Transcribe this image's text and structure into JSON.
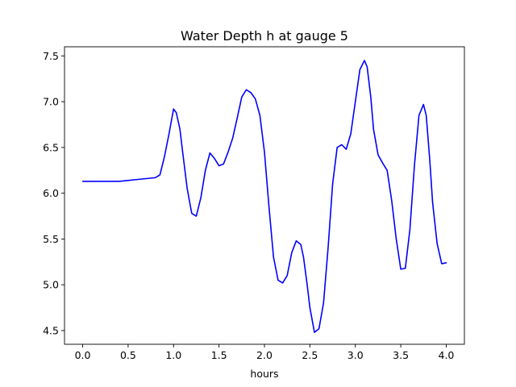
{
  "chart_data": {
    "type": "line",
    "title": "Water Depth h at gauge 5",
    "xlabel": "hours",
    "ylabel": "",
    "xlim": [
      -0.2,
      4.2
    ],
    "ylim": [
      4.35,
      7.6
    ],
    "x_ticks": [
      {
        "value": 0.0,
        "label": "0.0"
      },
      {
        "value": 0.5,
        "label": "0.5"
      },
      {
        "value": 1.0,
        "label": "1.0"
      },
      {
        "value": 1.5,
        "label": "1.5"
      },
      {
        "value": 2.0,
        "label": "2.0"
      },
      {
        "value": 2.5,
        "label": "2.5"
      },
      {
        "value": 3.0,
        "label": "3.0"
      },
      {
        "value": 3.5,
        "label": "3.5"
      },
      {
        "value": 4.0,
        "label": "4.0"
      }
    ],
    "y_ticks": [
      {
        "value": 4.5,
        "label": "4.5"
      },
      {
        "value": 5.0,
        "label": "5.0"
      },
      {
        "value": 5.5,
        "label": "5.5"
      },
      {
        "value": 6.0,
        "label": "6.0"
      },
      {
        "value": 6.5,
        "label": "6.5"
      },
      {
        "value": 7.0,
        "label": "7.0"
      },
      {
        "value": 7.5,
        "label": "7.5"
      }
    ],
    "grid": false,
    "legend": "none",
    "series": [
      {
        "color": "#0000ff",
        "x": [
          0.0,
          0.2,
          0.4,
          0.5,
          0.6,
          0.7,
          0.8,
          0.85,
          0.9,
          0.95,
          1.0,
          1.03,
          1.07,
          1.1,
          1.15,
          1.2,
          1.25,
          1.3,
          1.35,
          1.4,
          1.45,
          1.5,
          1.55,
          1.6,
          1.65,
          1.7,
          1.75,
          1.8,
          1.85,
          1.9,
          1.95,
          2.0,
          2.05,
          2.1,
          2.15,
          2.2,
          2.25,
          2.3,
          2.35,
          2.4,
          2.43,
          2.47,
          2.5,
          2.55,
          2.6,
          2.65,
          2.7,
          2.75,
          2.8,
          2.85,
          2.9,
          2.95,
          3.0,
          3.05,
          3.1,
          3.13,
          3.17,
          3.2,
          3.25,
          3.3,
          3.35,
          3.4,
          3.45,
          3.5,
          3.55,
          3.6,
          3.65,
          3.7,
          3.75,
          3.78,
          3.82,
          3.85,
          3.9,
          3.95,
          4.0
        ],
        "y": [
          6.13,
          6.13,
          6.13,
          6.14,
          6.15,
          6.16,
          6.17,
          6.2,
          6.4,
          6.65,
          6.92,
          6.88,
          6.7,
          6.45,
          6.05,
          5.78,
          5.75,
          5.95,
          6.25,
          6.44,
          6.38,
          6.3,
          6.32,
          6.45,
          6.6,
          6.82,
          7.05,
          7.13,
          7.1,
          7.03,
          6.85,
          6.45,
          5.85,
          5.3,
          5.05,
          5.02,
          5.1,
          5.35,
          5.48,
          5.44,
          5.3,
          5.0,
          4.75,
          4.48,
          4.52,
          4.8,
          5.4,
          6.1,
          6.5,
          6.53,
          6.48,
          6.65,
          7.0,
          7.35,
          7.45,
          7.38,
          7.05,
          6.7,
          6.42,
          6.33,
          6.25,
          5.92,
          5.5,
          5.17,
          5.18,
          5.6,
          6.3,
          6.85,
          6.97,
          6.85,
          6.35,
          5.9,
          5.45,
          5.23,
          5.24
        ]
      }
    ]
  }
}
